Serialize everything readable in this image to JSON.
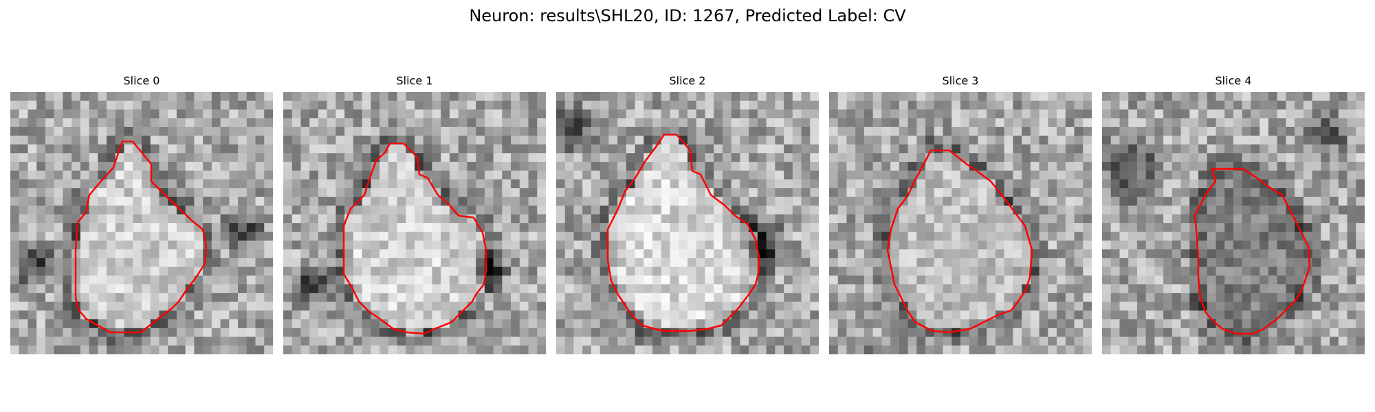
{
  "title": "Neuron: results\\SHL20, ID: 1267, Predicted Label: CV",
  "contour_color": "#ff0000",
  "slices": [
    {
      "title": "Slice 0"
    },
    {
      "title": "Slice 1"
    },
    {
      "title": "Slice 2"
    },
    {
      "title": "Slice 3"
    },
    {
      "title": "Slice 4"
    }
  ]
}
